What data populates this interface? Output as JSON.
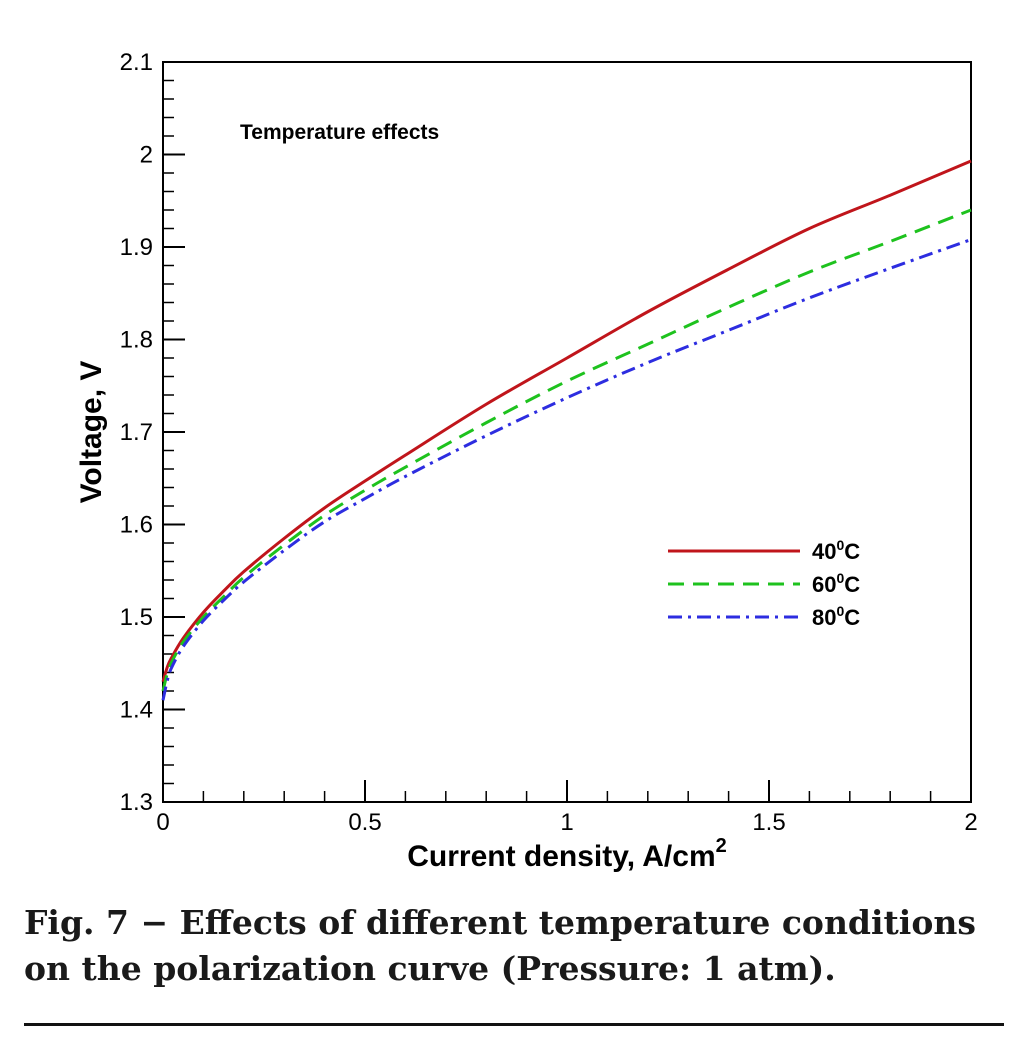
{
  "chart_data": {
    "type": "line",
    "xlabel": "Current density, A/cm",
    "xlabel_sup": "2",
    "ylabel": "Voltage, V",
    "annotation": "Temperature effects",
    "xlim": [
      0,
      2
    ],
    "ylim": [
      1.3,
      2.1
    ],
    "x_ticks": [
      "0",
      "0.5",
      "1",
      "1.5",
      "2"
    ],
    "y_ticks": [
      "1.3",
      "1.4",
      "1.5",
      "1.6",
      "1.7",
      "1.8",
      "1.9",
      "2",
      "2.1"
    ],
    "grid": false,
    "legend_position": "right",
    "x": [
      0,
      0.01,
      0.02,
      0.05,
      0.1,
      0.15,
      0.2,
      0.3,
      0.4,
      0.5,
      0.6,
      0.8,
      1.0,
      1.2,
      1.4,
      1.6,
      1.8,
      2.0
    ],
    "series": [
      {
        "name": "40",
        "unit": "C",
        "sup": "0",
        "color": "#c0151b",
        "dash": "solid",
        "values": [
          1.43,
          1.445,
          1.455,
          1.477,
          1.505,
          1.528,
          1.549,
          1.585,
          1.618,
          1.647,
          1.675,
          1.73,
          1.78,
          1.83,
          1.876,
          1.92,
          1.956,
          1.993
        ]
      },
      {
        "name": "60",
        "unit": "C",
        "sup": "0",
        "color": "#1ec21e",
        "dash": "dashed",
        "values": [
          1.42,
          1.438,
          1.45,
          1.473,
          1.5,
          1.522,
          1.543,
          1.578,
          1.61,
          1.637,
          1.662,
          1.71,
          1.755,
          1.795,
          1.835,
          1.873,
          1.906,
          1.94
        ]
      },
      {
        "name": "80",
        "unit": "C",
        "sup": "0",
        "color": "#2d2de0",
        "dash": "dashdot",
        "values": [
          1.41,
          1.43,
          1.444,
          1.468,
          1.496,
          1.518,
          1.538,
          1.572,
          1.603,
          1.628,
          1.652,
          1.696,
          1.737,
          1.775,
          1.81,
          1.845,
          1.877,
          1.908
        ]
      }
    ]
  },
  "caption": "Fig. 7 − Effects of different temperature conditions on the polarization curve (Pressure: 1 atm)."
}
